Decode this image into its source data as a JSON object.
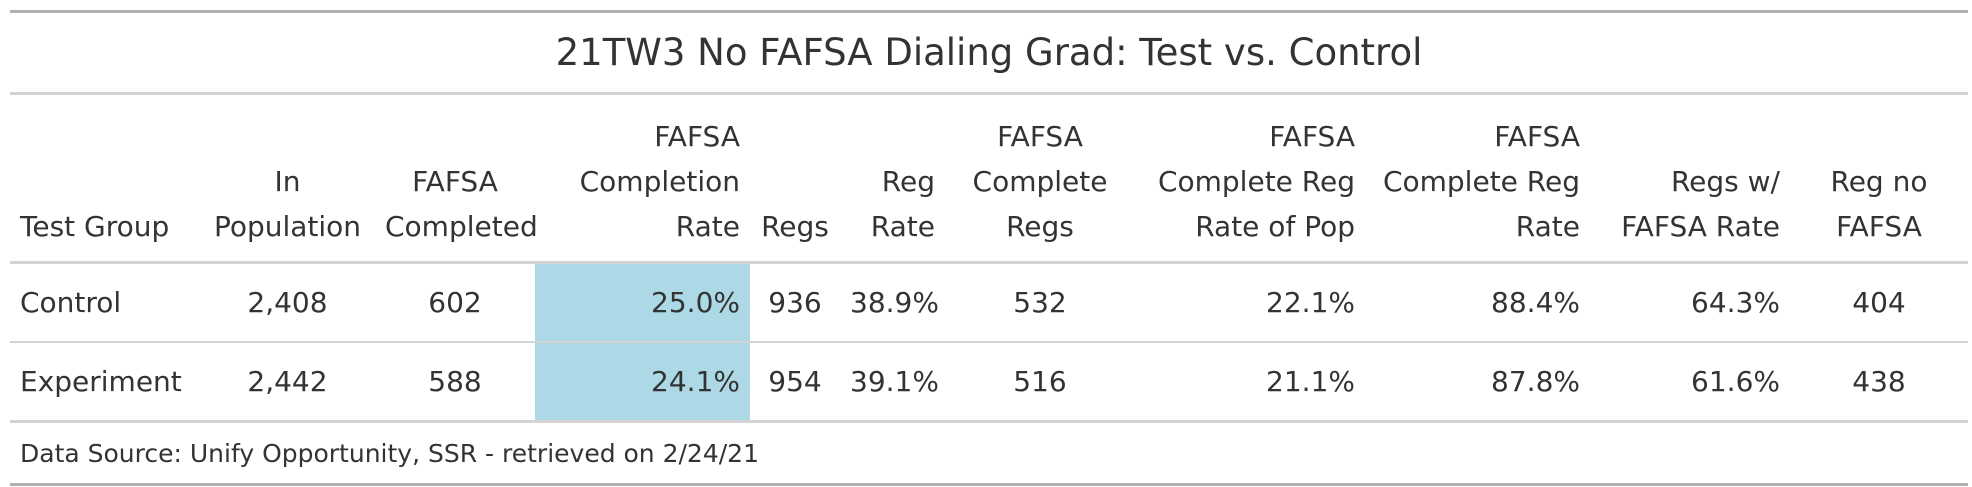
{
  "table": {
    "title": "21TW3 No FAFSA Dialing Grad: Test vs. Control",
    "columns": [
      "Test Group",
      "In Population",
      "FAFSA Completed",
      "FAFSA Completion Rate",
      "Regs",
      "Reg Rate",
      "FAFSA Complete Regs",
      "FAFSA Complete Reg Rate of Pop",
      "FAFSA Complete Reg Rate",
      "Regs w/ FAFSA Rate",
      "Reg no FAFSA"
    ],
    "rows": [
      [
        "Control",
        "2,408",
        "602",
        "25.0%",
        "936",
        "38.9%",
        "532",
        "22.1%",
        "88.4%",
        "64.3%",
        "404"
      ],
      [
        "Experiment",
        "2,442",
        "588",
        "24.1%",
        "954",
        "39.1%",
        "516",
        "21.1%",
        "87.8%",
        "61.6%",
        "438"
      ]
    ],
    "highlight_color": "#add8e6",
    "source_note": "Data Source: Unify Opportunity, SSR - retrieved on 2/24/21"
  }
}
